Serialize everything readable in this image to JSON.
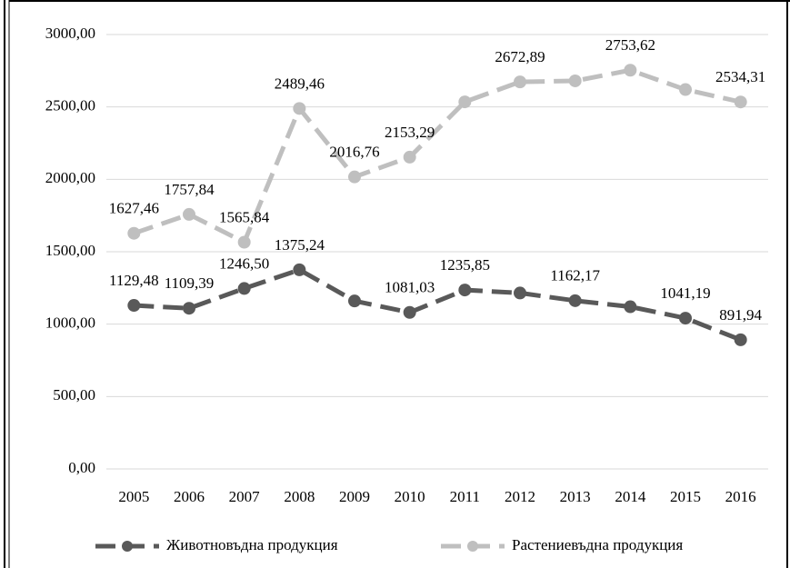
{
  "chart_data": {
    "type": "line",
    "categories": [
      "2005",
      "2006",
      "2007",
      "2008",
      "2009",
      "2010",
      "2011",
      "2012",
      "2013",
      "2014",
      "2015",
      "2016"
    ],
    "series": [
      {
        "name": "Животновъдна продукция",
        "color": "#595959",
        "values": [
          1129.48,
          1109.39,
          1246.5,
          1375.24,
          1160,
          1081.03,
          1235.85,
          1215,
          1162.17,
          1120,
          1041.19,
          891.94
        ],
        "value_labels": [
          "1129,48",
          "1109,39",
          "1246,50",
          "1375,24",
          null,
          "1081,03",
          "1235,85",
          null,
          "1162,17",
          null,
          "1041,19",
          "891,94"
        ]
      },
      {
        "name": "Растениевъдна продукция",
        "color": "#bfbfbf",
        "values": [
          1627.46,
          1757.84,
          1565.84,
          2489.46,
          2016.76,
          2153.29,
          2535,
          2672.89,
          2680,
          2753.62,
          2620,
          2534.31
        ],
        "value_labels": [
          "1627,46",
          "1757,84",
          "1565,84",
          "2489,46",
          "2016,76",
          "2153,29",
          null,
          "2672,89",
          null,
          "2753,62",
          null,
          "2534,31"
        ]
      }
    ],
    "ylim": [
      0,
      3000
    ],
    "yticks": [
      {
        "value": 0,
        "label": "0,00"
      },
      {
        "value": 500,
        "label": "500,00"
      },
      {
        "value": 1000,
        "label": "1000,00"
      },
      {
        "value": 1500,
        "label": "1500,00"
      },
      {
        "value": 2000,
        "label": "2000,00"
      },
      {
        "value": 2500,
        "label": "2500,00"
      },
      {
        "value": 3000,
        "label": "3000,00"
      }
    ],
    "grid": true,
    "legend": "bottom"
  }
}
